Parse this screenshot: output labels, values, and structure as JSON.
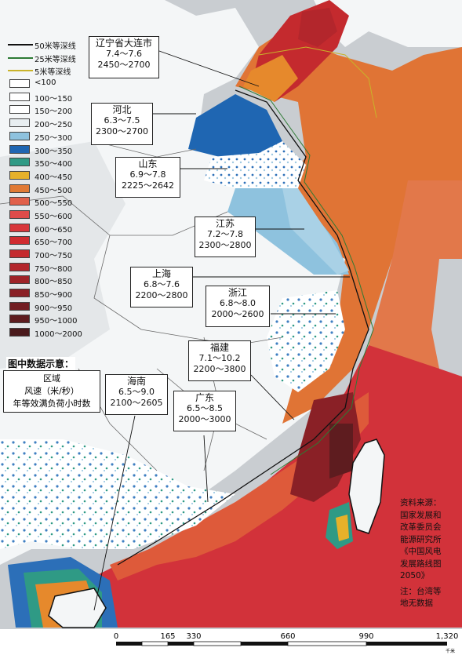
{
  "legend": {
    "lines": [
      {
        "label": "50米等深线",
        "color": "#111111"
      },
      {
        "label": "25米等深线",
        "color": "#2d7a34"
      },
      {
        "label": "5米等深线",
        "color": "#c9b32a"
      }
    ],
    "classes": [
      {
        "label": "<100",
        "color": "#ffffff"
      },
      {
        "label": "100～150",
        "color": "#ffffff"
      },
      {
        "label": "150～200",
        "color": "#ffffff"
      },
      {
        "label": "200～250",
        "color": "#e8eef1"
      },
      {
        "label": "250～300",
        "color": "#8ec2de"
      },
      {
        "label": "300～350",
        "color": "#1f66b2"
      },
      {
        "label": "350～400",
        "color": "#2f9a85"
      },
      {
        "label": "400～450",
        "color": "#e6b12a"
      },
      {
        "label": "450～500",
        "color": "#e07a35"
      },
      {
        "label": "500～550",
        "color": "#e0604a"
      },
      {
        "label": "550～600",
        "color": "#df4c4a"
      },
      {
        "label": "600～650",
        "color": "#d8363a"
      },
      {
        "label": "650～700",
        "color": "#d02c30"
      },
      {
        "label": "700～750",
        "color": "#c42a2e"
      },
      {
        "label": "750～800",
        "color": "#b3262c"
      },
      {
        "label": "800～850",
        "color": "#9e2328"
      },
      {
        "label": "850～900",
        "color": "#8a2026"
      },
      {
        "label": "900～950",
        "color": "#721d22"
      },
      {
        "label": "950～1000",
        "color": "#5e1c1f"
      },
      {
        "label": "1000～2000",
        "color": "#4a1a1c"
      }
    ]
  },
  "sample": {
    "title": "图中数据示意：",
    "line1": "区域",
    "line2": "风速（米/秒）",
    "line3": "年等效满负荷小时数"
  },
  "regions": [
    {
      "name": "辽宁省大连市",
      "speed": "7.4～7.6",
      "hours": "2450～2700"
    },
    {
      "name": "河北",
      "speed": "6.3～7.5",
      "hours": "2300～2700"
    },
    {
      "name": "山东",
      "speed": "6.9～7.8",
      "hours": "2225～2642"
    },
    {
      "name": "江苏",
      "speed": "7.2～7.8",
      "hours": "2300～2800"
    },
    {
      "name": "上海",
      "speed": "6.8～7.6",
      "hours": "2200～2800"
    },
    {
      "name": "浙江",
      "speed": "6.8～8.0",
      "hours": "2000～2600"
    },
    {
      "name": "福建",
      "speed": "7.1～10.2",
      "hours": "2200～3800"
    },
    {
      "name": "广东",
      "speed": "6.5～8.5",
      "hours": "2000～3000"
    },
    {
      "name": "海南",
      "speed": "6.5～9.0",
      "hours": "2100～2605"
    }
  ],
  "source": {
    "lines": [
      "资料来源：",
      "国家发展和",
      "改革委员会",
      "能源研究所",
      "《中国风电",
      "发展路线图",
      "2050》"
    ],
    "note": [
      "注：台湾等",
      "地无数据"
    ]
  },
  "scale": {
    "ticks": [
      "0",
      "165",
      "330",
      "660",
      "990",
      "1,320"
    ],
    "unit": "千米"
  }
}
